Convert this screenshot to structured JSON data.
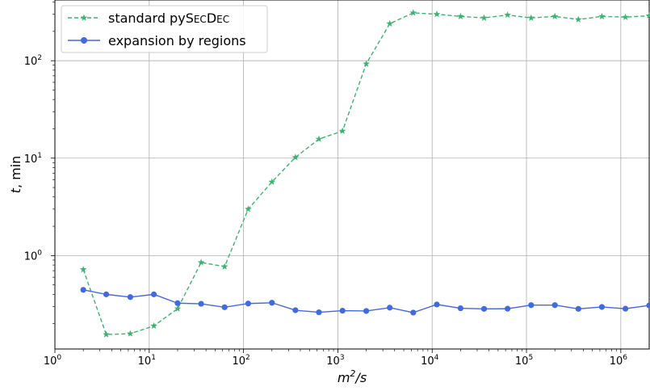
{
  "chart_data": {
    "type": "line",
    "xscale": "log",
    "yscale": "log",
    "xlabel_base": "m",
    "xlabel_sup": "2",
    "xlabel_rest": "/s",
    "ylabel_italic": "t",
    "ylabel_rest": ", min",
    "xlim": [
      1,
      2000000
    ],
    "ylim": [
      0.11,
      420
    ],
    "grid": true,
    "legend_position": "top-left",
    "x_ticks": [
      {
        "value": 1,
        "base": "10",
        "exp": "0"
      },
      {
        "value": 10,
        "base": "10",
        "exp": "1"
      },
      {
        "value": 100,
        "base": "10",
        "exp": "2"
      },
      {
        "value": 1000,
        "base": "10",
        "exp": "3"
      },
      {
        "value": 10000,
        "base": "10",
        "exp": "4"
      },
      {
        "value": 100000,
        "base": "10",
        "exp": "5"
      },
      {
        "value": 1000000,
        "base": "10",
        "exp": "6"
      }
    ],
    "y_ticks": [
      {
        "value": 1,
        "base": "10",
        "exp": "0"
      },
      {
        "value": 10,
        "base": "10",
        "exp": "1"
      },
      {
        "value": 100,
        "base": "10",
        "exp": "2"
      }
    ],
    "x": [
      2,
      3.5,
      6.3,
      11.2,
      20,
      35.5,
      63,
      112,
      200,
      355,
      630,
      1120,
      2000,
      3550,
      6300,
      11200,
      20000,
      35500,
      63000,
      112000,
      200000,
      355000,
      630000,
      1120000,
      2000000
    ],
    "series": [
      {
        "name": "standard pySecDec",
        "name_parts": {
          "prefix": "standard py",
          "caps1": "S",
          "small1": "EC",
          "caps2": "D",
          "small2": "EC"
        },
        "color": "#3cb371",
        "linestyle": "dashed",
        "marker": "star",
        "values": [
          0.72,
          0.155,
          0.158,
          0.19,
          0.285,
          0.85,
          0.77,
          3.0,
          5.7,
          10.2,
          15.7,
          19.0,
          93,
          240,
          310,
          300,
          285,
          275,
          295,
          275,
          285,
          265,
          285,
          280,
          290
        ]
      },
      {
        "name": "expansion by regions",
        "color": "#4169e1",
        "linestyle": "solid",
        "marker": "circle",
        "values": [
          0.445,
          0.4,
          0.375,
          0.4,
          0.325,
          0.32,
          0.295,
          0.322,
          0.328,
          0.275,
          0.262,
          0.272,
          0.27,
          0.292,
          0.26,
          0.315,
          0.288,
          0.284,
          0.285,
          0.31,
          0.31,
          0.284,
          0.297,
          0.285,
          0.308
        ]
      }
    ]
  }
}
